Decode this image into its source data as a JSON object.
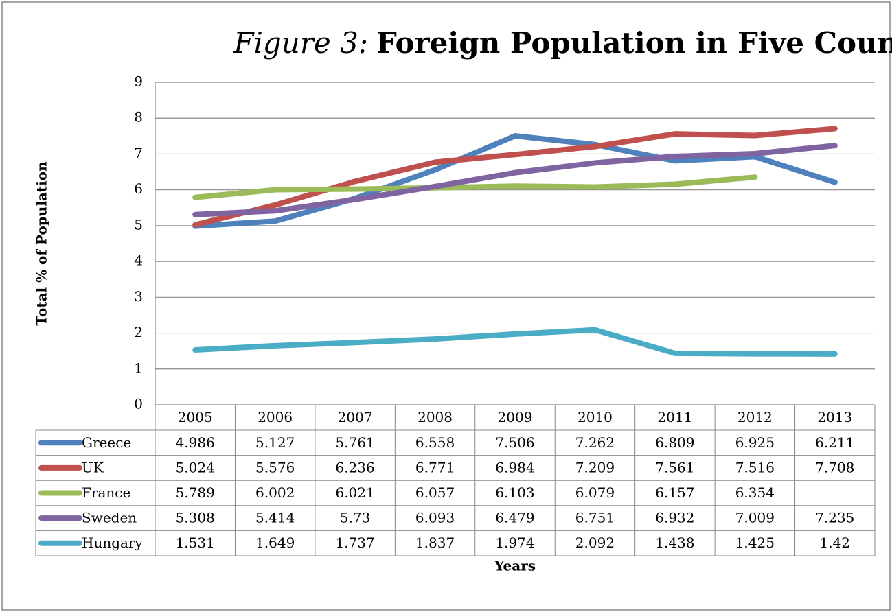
{
  "chart_data": {
    "type": "line",
    "title_label": "Figure 3:",
    "title": "Foreign Population in Five Countries",
    "y_label": "Total % of Population",
    "x_label": "Years",
    "categories": [
      "2005",
      "2006",
      "2007",
      "2008",
      "2009",
      "2010",
      "2011",
      "2012",
      "2013"
    ],
    "series": [
      {
        "name": "Greece",
        "color": "#4f81bd",
        "values": [
          4.986,
          5.127,
          5.761,
          6.558,
          7.506,
          7.262,
          6.809,
          6.925,
          6.211
        ]
      },
      {
        "name": "UK",
        "color": "#c0504d",
        "values": [
          5.024,
          5.576,
          6.236,
          6.771,
          6.984,
          7.209,
          7.561,
          7.516,
          7.708
        ]
      },
      {
        "name": "France",
        "color": "#9bbb59",
        "values": [
          5.789,
          6.002,
          6.021,
          6.057,
          6.103,
          6.079,
          6.157,
          6.354,
          null
        ]
      },
      {
        "name": "Sweden",
        "color": "#8064a2",
        "values": [
          5.308,
          5.414,
          5.73,
          6.093,
          6.479,
          6.751,
          6.932,
          7.009,
          7.235
        ]
      },
      {
        "name": "Hungary",
        "color": "#4bacc6",
        "values": [
          1.531,
          1.649,
          1.737,
          1.837,
          1.974,
          2.092,
          1.438,
          1.425,
          1.42
        ]
      }
    ],
    "ylim": [
      0,
      9
    ],
    "yticks": [
      0,
      1,
      2,
      3,
      4,
      5,
      6,
      7,
      8,
      9
    ],
    "grid": true,
    "data_table": true
  }
}
